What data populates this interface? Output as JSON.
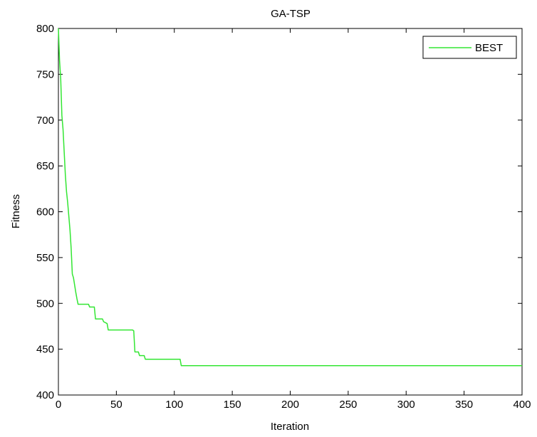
{
  "chart_data": {
    "type": "line",
    "title": "GA-TSP",
    "xlabel": "Iteration",
    "ylabel": "Fitness",
    "xlim": [
      0,
      400
    ],
    "ylim": [
      400,
      800
    ],
    "xticks": [
      0,
      50,
      100,
      150,
      200,
      250,
      300,
      350,
      400
    ],
    "yticks": [
      400,
      450,
      500,
      550,
      600,
      650,
      700,
      750,
      800
    ],
    "grid": false,
    "legend_position": "top-right",
    "series": [
      {
        "name": "BEST",
        "color": "#33e633",
        "x": [
          0,
          1,
          2,
          3,
          4,
          5,
          6,
          7,
          8,
          9,
          10,
          11,
          12,
          13,
          14,
          15,
          16,
          17,
          18,
          19,
          20,
          22,
          26,
          27,
          30,
          31,
          32,
          33,
          38,
          39,
          42,
          43,
          55,
          64,
          65,
          66,
          69,
          70,
          74,
          75,
          105,
          106,
          400
        ],
        "y": [
          800,
          765,
          745,
          705,
          690,
          665,
          640,
          622,
          610,
          595,
          580,
          560,
          532,
          528,
          520,
          512,
          505,
          499,
          499,
          499,
          499,
          499,
          499,
          496,
          496,
          496,
          483,
          483,
          483,
          480,
          478,
          471,
          471,
          471,
          470,
          447,
          447,
          443,
          443,
          439,
          439,
          432,
          432
        ]
      }
    ]
  }
}
